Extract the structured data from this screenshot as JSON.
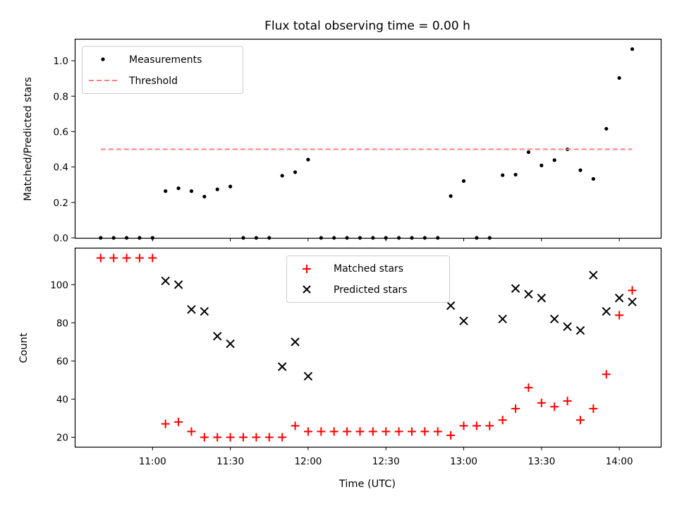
{
  "chart_data": [
    {
      "type": "scatter",
      "title": "Flux total observing time = 0.00 h",
      "xlabel": "",
      "ylabel": "Matched/Predicted stars",
      "ylim": [
        0,
        1.12
      ],
      "yticks": [
        "0.0",
        "0.2",
        "0.4",
        "0.6",
        "0.8",
        "1.0"
      ],
      "legend_position": "top-left",
      "grid": false,
      "series": [
        {
          "name": "Measurements",
          "marker": "dot",
          "color": "#000000",
          "points": [
            [
              "10:40",
              0.0
            ],
            [
              "10:45",
              0.0
            ],
            [
              "10:50",
              0.0
            ],
            [
              "10:55",
              0.0
            ],
            [
              "11:00",
              0.0
            ],
            [
              "11:05",
              0.264
            ],
            [
              "11:10",
              0.28
            ],
            [
              "11:15",
              0.264
            ],
            [
              "11:20",
              0.233
            ],
            [
              "11:25",
              0.274
            ],
            [
              "11:30",
              0.29
            ],
            [
              "11:35",
              0.0
            ],
            [
              "11:40",
              0.0
            ],
            [
              "11:45",
              0.0
            ],
            [
              "11:50",
              0.351
            ],
            [
              "11:55",
              0.371
            ],
            [
              "12:00",
              0.442
            ],
            [
              "12:05",
              0.0
            ],
            [
              "12:10",
              0.0
            ],
            [
              "12:15",
              0.0
            ],
            [
              "12:20",
              0.0
            ],
            [
              "12:25",
              0.0
            ],
            [
              "12:30",
              0.0
            ],
            [
              "12:35",
              0.0
            ],
            [
              "12:40",
              0.0
            ],
            [
              "12:45",
              0.0
            ],
            [
              "12:50",
              0.0
            ],
            [
              "12:55",
              0.236
            ],
            [
              "13:00",
              0.321
            ],
            [
              "13:05",
              0.0
            ],
            [
              "13:10",
              0.0
            ],
            [
              "13:15",
              0.354
            ],
            [
              "13:20",
              0.357
            ],
            [
              "13:25",
              0.484
            ],
            [
              "13:30",
              0.409
            ],
            [
              "13:35",
              0.439
            ],
            [
              "13:40",
              0.5
            ],
            [
              "13:45",
              0.382
            ],
            [
              "13:50",
              0.333
            ],
            [
              "13:55",
              0.616
            ],
            [
              "14:00",
              0.903
            ],
            [
              "14:05",
              1.066
            ]
          ]
        },
        {
          "name": "Threshold",
          "marker": "dashed-line",
          "color": "#ff7f7f",
          "points": [
            [
              "10:40",
              0.5
            ],
            [
              "14:05",
              0.5
            ]
          ]
        }
      ]
    },
    {
      "type": "scatter",
      "title": "",
      "xlabel": "Time (UTC)",
      "ylabel": "Count",
      "ylim": [
        15,
        119
      ],
      "yticks": [
        "20",
        "40",
        "60",
        "80",
        "100"
      ],
      "xticks": [
        "11:00",
        "11:30",
        "12:00",
        "12:30",
        "13:00",
        "13:30",
        "14:00"
      ],
      "legend_position": "top-center",
      "grid": false,
      "series": [
        {
          "name": "Matched stars",
          "marker": "plus",
          "color": "#ff0000",
          "points": [
            [
              "10:40",
              114
            ],
            [
              "10:45",
              114
            ],
            [
              "10:50",
              114
            ],
            [
              "10:55",
              114
            ],
            [
              "11:00",
              114
            ],
            [
              "11:05",
              27
            ],
            [
              "11:10",
              28
            ],
            [
              "11:15",
              23
            ],
            [
              "11:20",
              20
            ],
            [
              "11:25",
              20
            ],
            [
              "11:30",
              20
            ],
            [
              "11:35",
              20
            ],
            [
              "11:40",
              20
            ],
            [
              "11:45",
              20
            ],
            [
              "11:50",
              20
            ],
            [
              "11:55",
              26
            ],
            [
              "12:00",
              23
            ],
            [
              "12:05",
              23
            ],
            [
              "12:10",
              23
            ],
            [
              "12:15",
              23
            ],
            [
              "12:20",
              23
            ],
            [
              "12:25",
              23
            ],
            [
              "12:30",
              23
            ],
            [
              "12:35",
              23
            ],
            [
              "12:40",
              23
            ],
            [
              "12:45",
              23
            ],
            [
              "12:50",
              23
            ],
            [
              "12:55",
              21
            ],
            [
              "13:00",
              26
            ],
            [
              "13:05",
              26
            ],
            [
              "13:10",
              26
            ],
            [
              "13:15",
              29
            ],
            [
              "13:20",
              35
            ],
            [
              "13:25",
              46
            ],
            [
              "13:30",
              38
            ],
            [
              "13:35",
              36
            ],
            [
              "13:40",
              39
            ],
            [
              "13:45",
              29
            ],
            [
              "13:50",
              35
            ],
            [
              "13:55",
              53
            ],
            [
              "14:00",
              84
            ],
            [
              "14:05",
              97
            ]
          ]
        },
        {
          "name": "Predicted stars",
          "marker": "x",
          "color": "#000000",
          "points": [
            [
              "11:05",
              102
            ],
            [
              "11:10",
              100
            ],
            [
              "11:15",
              87
            ],
            [
              "11:20",
              86
            ],
            [
              "11:25",
              73
            ],
            [
              "11:30",
              69
            ],
            [
              "11:50",
              57
            ],
            [
              "11:55",
              70
            ],
            [
              "12:00",
              52
            ],
            [
              "12:55",
              89
            ],
            [
              "13:00",
              81
            ],
            [
              "13:15",
              82
            ],
            [
              "13:20",
              98
            ],
            [
              "13:25",
              95
            ],
            [
              "13:30",
              93
            ],
            [
              "13:35",
              82
            ],
            [
              "13:40",
              78
            ],
            [
              "13:45",
              76
            ],
            [
              "13:50",
              105
            ],
            [
              "13:55",
              86
            ],
            [
              "14:00",
              93
            ],
            [
              "14:05",
              91
            ]
          ]
        }
      ]
    }
  ]
}
